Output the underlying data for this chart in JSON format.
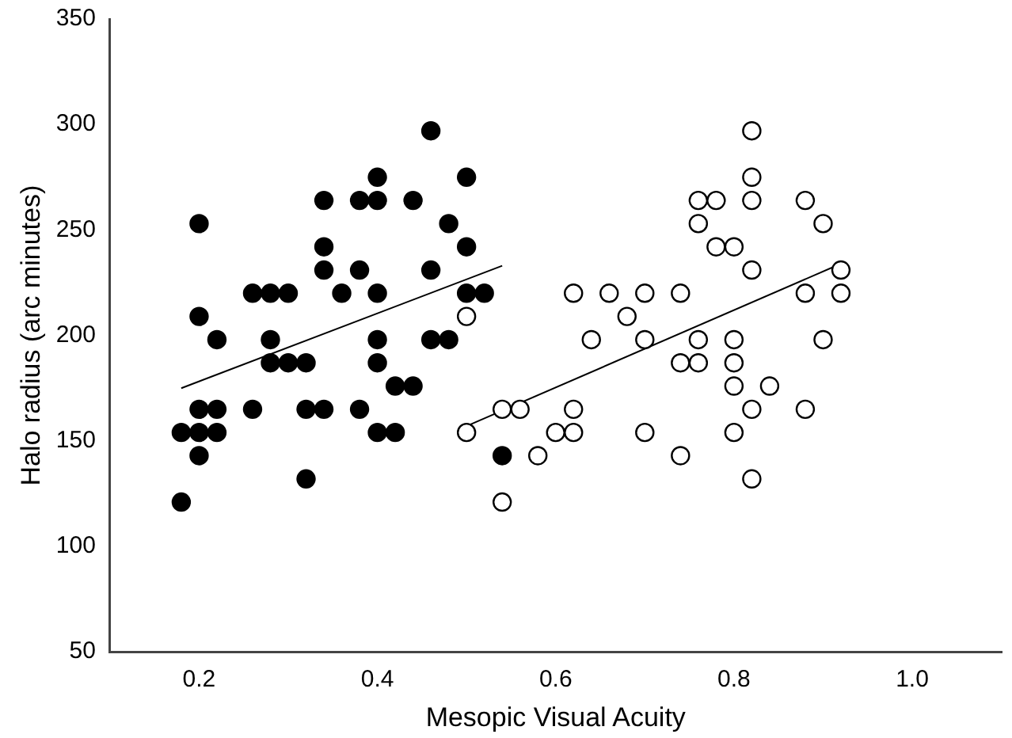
{
  "chart_data": {
    "type": "scatter",
    "xlabel": "Mesopic Visual Acuity",
    "ylabel": "Halo radius (arc minutes)",
    "xlim": [
      0.1,
      1.1
    ],
    "xticks": [
      {
        "value": 0.2,
        "label": "0.2"
      },
      {
        "value": 0.4,
        "label": "0.4"
      },
      {
        "value": 0.6,
        "label": "0.6"
      },
      {
        "value": 0.8,
        "label": "0.8"
      },
      {
        "value": 1.0,
        "label": "1.0"
      }
    ],
    "ylim": [
      50,
      350
    ],
    "yticks": [
      50,
      100,
      150,
      200,
      250,
      300,
      350
    ],
    "grid": false,
    "legend": false,
    "marker": "circle",
    "series": [
      {
        "color": "#000000",
        "x": [
          0.18,
          0.18,
          0.2,
          0.2,
          0.2,
          0.2,
          0.2,
          0.22,
          0.22,
          0.22,
          0.26,
          0.26,
          0.28,
          0.28,
          0.28,
          0.3,
          0.3,
          0.32,
          0.32,
          0.32,
          0.34,
          0.34,
          0.34,
          0.34,
          0.36,
          0.38,
          0.38,
          0.38,
          0.4,
          0.4,
          0.4,
          0.4,
          0.4,
          0.4,
          0.42,
          0.42,
          0.44,
          0.44,
          0.46,
          0.46,
          0.46,
          0.48,
          0.48,
          0.5,
          0.5,
          0.5,
          0.52,
          0.54
        ],
        "values": [
          154,
          121,
          253,
          209,
          165,
          154,
          143,
          198,
          165,
          154,
          220,
          165,
          220,
          198,
          187,
          220,
          187,
          187,
          165,
          132,
          264,
          242,
          231,
          165,
          220,
          264,
          231,
          165,
          275,
          264,
          220,
          198,
          187,
          154,
          176,
          154,
          264,
          176,
          297,
          231,
          198,
          253,
          198,
          275,
          242,
          220,
          220,
          143
        ]
      },
      {
        "color": "#ffffff",
        "x": [
          0.5,
          0.5,
          0.54,
          0.54,
          0.56,
          0.58,
          0.6,
          0.62,
          0.62,
          0.62,
          0.64,
          0.66,
          0.68,
          0.7,
          0.7,
          0.7,
          0.74,
          0.74,
          0.74,
          0.76,
          0.76,
          0.76,
          0.76,
          0.78,
          0.78,
          0.8,
          0.8,
          0.8,
          0.8,
          0.8,
          0.82,
          0.82,
          0.82,
          0.82,
          0.82,
          0.82,
          0.84,
          0.88,
          0.88,
          0.88,
          0.9,
          0.9,
          0.92,
          0.92
        ],
        "values": [
          209,
          154,
          165,
          121,
          165,
          143,
          154,
          220,
          165,
          154,
          198,
          220,
          209,
          220,
          198,
          154,
          220,
          187,
          143,
          264,
          253,
          198,
          187,
          264,
          242,
          242,
          198,
          187,
          176,
          154,
          297,
          275,
          264,
          231,
          165,
          132,
          176,
          264,
          220,
          165,
          253,
          198,
          231,
          220
        ]
      },
      {
        "type": "line",
        "color": "#000000",
        "marker": "none",
        "x": [
          0.18,
          0.54
        ],
        "values": [
          175,
          233
        ]
      },
      {
        "type": "line",
        "color": "#000000",
        "marker": "none",
        "x": [
          0.5,
          0.92
        ],
        "values": [
          157,
          234
        ]
      }
    ]
  }
}
